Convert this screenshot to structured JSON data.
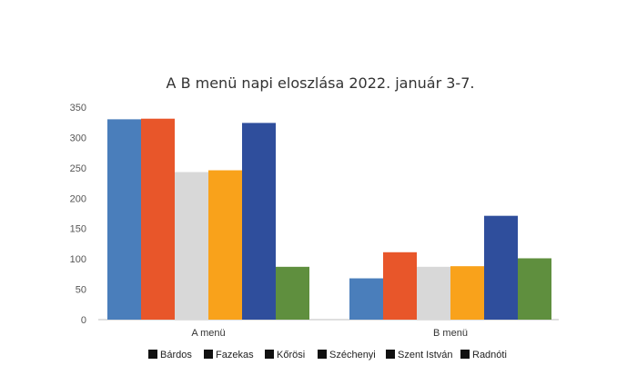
{
  "chart_data": {
    "type": "bar",
    "title": "A B menü napi eloszlása 2022. január 3-7.",
    "categories": [
      "A menü",
      "B menü"
    ],
    "series": [
      {
        "name": "Bárdos",
        "values": [
          330,
          68
        ],
        "color": "#4a7ebb"
      },
      {
        "name": "Fazekas",
        "values": [
          331,
          111
        ],
        "color": "#e8562a"
      },
      {
        "name": "Kőrösi",
        "values": [
          243,
          87
        ],
        "color": "#d8d8d8"
      },
      {
        "name": "Széchenyi",
        "values": [
          246,
          88
        ],
        "color": "#f9a21b"
      },
      {
        "name": "Szent István",
        "values": [
          324,
          171
        ],
        "color": "#2f4e9c"
      },
      {
        "name": "Radnóti",
        "values": [
          87,
          101
        ],
        "color": "#5f8f3e"
      }
    ],
    "yticks": [
      0,
      50,
      100,
      150,
      200,
      250,
      300,
      350
    ],
    "ylim": [
      0,
      350
    ],
    "grid": false,
    "legend_position": "bottom",
    "legend_swatch_color": "#111111"
  }
}
